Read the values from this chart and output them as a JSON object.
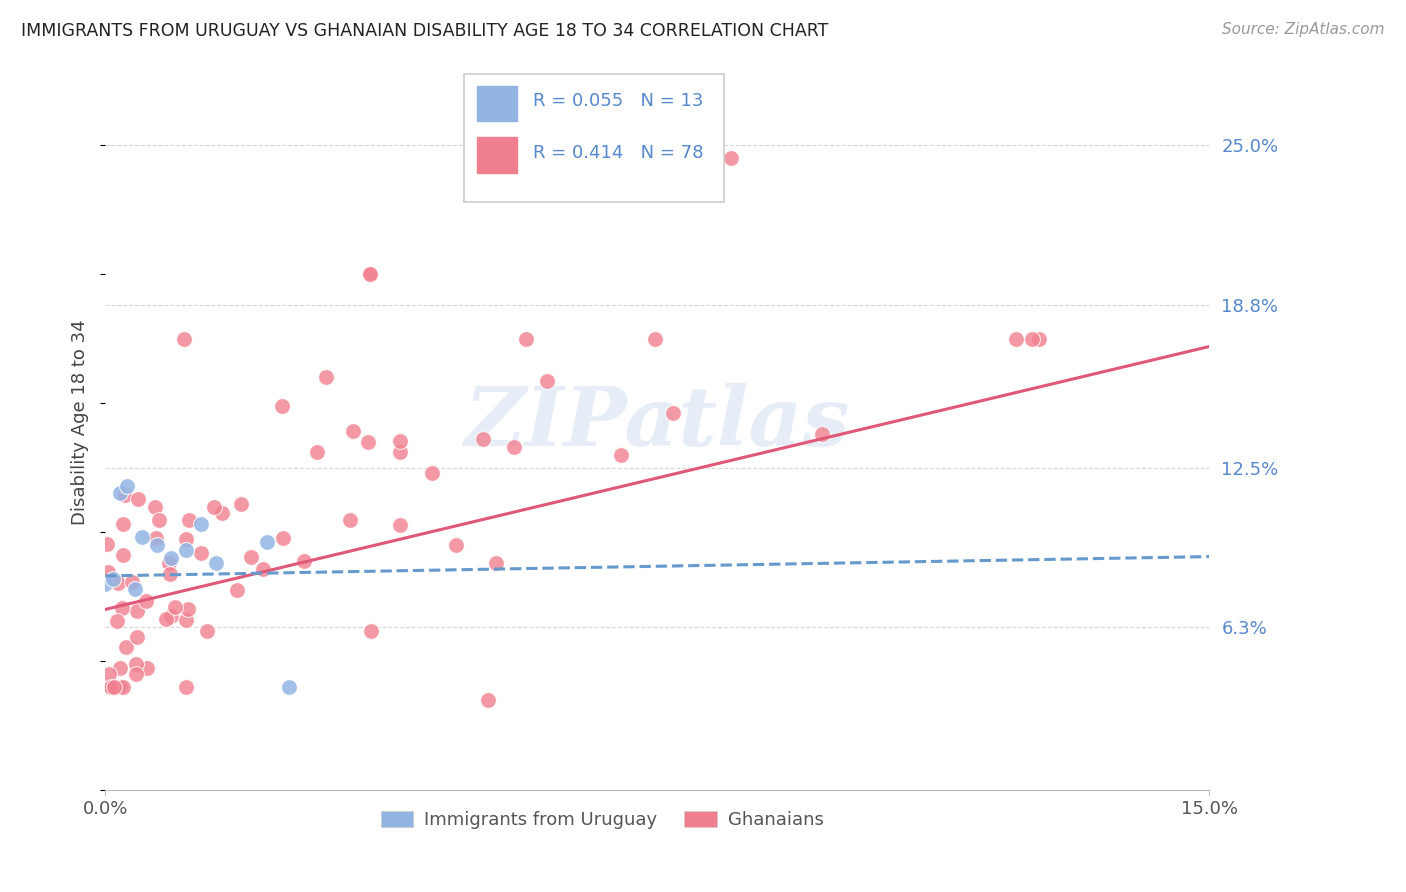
{
  "title": "IMMIGRANTS FROM URUGUAY VS GHANAIAN DISABILITY AGE 18 TO 34 CORRELATION CHART",
  "source": "Source: ZipAtlas.com",
  "ylabel": "Disability Age 18 to 34",
  "ytick_labels": [
    "6.3%",
    "12.5%",
    "18.8%",
    "25.0%"
  ],
  "ytick_values": [
    0.063,
    0.125,
    0.188,
    0.25
  ],
  "xlim": [
    0.0,
    0.15
  ],
  "ylim": [
    0.0,
    0.285
  ],
  "watermark": "ZIPatlas",
  "legend1_r": "0.055",
  "legend1_n": "13",
  "legend2_r": "0.414",
  "legend2_n": "78",
  "legend1_label": "Immigrants from Uruguay",
  "legend2_label": "Ghanaians",
  "uruguay_color": "#92b4e3",
  "ghana_color": "#f08090",
  "trendline_uruguay_color": "#6699cc",
  "trendline_ghana_color": "#e05878",
  "background_color": "#ffffff",
  "grid_color": "#cccccc",
  "title_color": "#222222",
  "right_tick_color": "#5588cc",
  "legend_box_color": "#dddddd",
  "source_color": "#999999"
}
